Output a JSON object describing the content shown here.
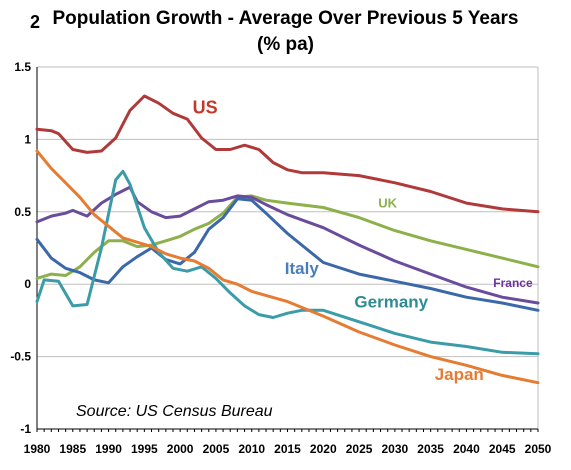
{
  "figure_number": "2",
  "chart_data": {
    "type": "line",
    "title": "Population  Growth  - Average Over Previous 5 Years",
    "subtitle": "(% pa)",
    "source": "Source: US Census Bureau",
    "xlim": [
      1980,
      2050
    ],
    "ylim": [
      -1,
      1.5
    ],
    "x_ticks": [
      1980,
      1985,
      1990,
      1995,
      2000,
      2005,
      2010,
      2015,
      2020,
      2025,
      2030,
      2035,
      2040,
      2045,
      2050
    ],
    "y_ticks": [
      -1,
      -0.5,
      0,
      0.5,
      1,
      1.5
    ],
    "y_tick_labels": [
      "-1",
      "-0.5",
      "0",
      "0.5",
      "1",
      "1.5"
    ],
    "grid": true,
    "series": [
      {
        "name": "US",
        "color": "#b03a3a",
        "label_color": "#c0392b",
        "points": [
          [
            1980,
            1.07
          ],
          [
            1982,
            1.06
          ],
          [
            1983,
            1.04
          ],
          [
            1985,
            0.93
          ],
          [
            1987,
            0.91
          ],
          [
            1989,
            0.92
          ],
          [
            1991,
            1.01
          ],
          [
            1993,
            1.2
          ],
          [
            1995,
            1.3
          ],
          [
            1997,
            1.25
          ],
          [
            1999,
            1.18
          ],
          [
            2001,
            1.14
          ],
          [
            2003,
            1.01
          ],
          [
            2005,
            0.93
          ],
          [
            2007,
            0.93
          ],
          [
            2009,
            0.96
          ],
          [
            2011,
            0.93
          ],
          [
            2013,
            0.84
          ],
          [
            2015,
            0.79
          ],
          [
            2017,
            0.77
          ],
          [
            2020,
            0.77
          ],
          [
            2025,
            0.75
          ],
          [
            2030,
            0.7
          ],
          [
            2035,
            0.64
          ],
          [
            2040,
            0.56
          ],
          [
            2045,
            0.52
          ],
          [
            2050,
            0.5
          ]
        ]
      },
      {
        "name": "UK",
        "color": "#8db04a",
        "label_color": "#8db04a",
        "points": [
          [
            1980,
            0.04
          ],
          [
            1982,
            0.07
          ],
          [
            1984,
            0.06
          ],
          [
            1986,
            0.12
          ],
          [
            1988,
            0.22
          ],
          [
            1990,
            0.3
          ],
          [
            1992,
            0.3
          ],
          [
            1994,
            0.26
          ],
          [
            1996,
            0.27
          ],
          [
            1998,
            0.3
          ],
          [
            2000,
            0.33
          ],
          [
            2002,
            0.38
          ],
          [
            2004,
            0.42
          ],
          [
            2006,
            0.49
          ],
          [
            2008,
            0.6
          ],
          [
            2010,
            0.61
          ],
          [
            2012,
            0.58
          ],
          [
            2015,
            0.56
          ],
          [
            2020,
            0.53
          ],
          [
            2025,
            0.46
          ],
          [
            2030,
            0.37
          ],
          [
            2035,
            0.3
          ],
          [
            2040,
            0.24
          ],
          [
            2045,
            0.18
          ],
          [
            2050,
            0.12
          ]
        ]
      },
      {
        "name": "France",
        "color": "#6a4c9c",
        "label_color": "#7030a0",
        "points": [
          [
            1980,
            0.43
          ],
          [
            1982,
            0.47
          ],
          [
            1984,
            0.49
          ],
          [
            1985,
            0.51
          ],
          [
            1987,
            0.47
          ],
          [
            1989,
            0.56
          ],
          [
            1991,
            0.62
          ],
          [
            1993,
            0.67
          ],
          [
            1994,
            0.57
          ],
          [
            1996,
            0.5
          ],
          [
            1998,
            0.46
          ],
          [
            2000,
            0.47
          ],
          [
            2002,
            0.52
          ],
          [
            2004,
            0.57
          ],
          [
            2006,
            0.58
          ],
          [
            2008,
            0.61
          ],
          [
            2010,
            0.6
          ],
          [
            2012,
            0.55
          ],
          [
            2015,
            0.48
          ],
          [
            2020,
            0.39
          ],
          [
            2025,
            0.27
          ],
          [
            2030,
            0.16
          ],
          [
            2035,
            0.07
          ],
          [
            2040,
            -0.02
          ],
          [
            2045,
            -0.09
          ],
          [
            2050,
            -0.13
          ]
        ]
      },
      {
        "name": "Italy",
        "color": "#3b68a8",
        "label_color": "#4a7ebb",
        "points": [
          [
            1980,
            0.31
          ],
          [
            1982,
            0.18
          ],
          [
            1984,
            0.11
          ],
          [
            1986,
            0.08
          ],
          [
            1988,
            0.03
          ],
          [
            1990,
            0.01
          ],
          [
            1992,
            0.12
          ],
          [
            1994,
            0.19
          ],
          [
            1996,
            0.25
          ],
          [
            1998,
            0.17
          ],
          [
            2000,
            0.14
          ],
          [
            2002,
            0.22
          ],
          [
            2004,
            0.38
          ],
          [
            2006,
            0.46
          ],
          [
            2008,
            0.59
          ],
          [
            2010,
            0.58
          ],
          [
            2012,
            0.49
          ],
          [
            2015,
            0.35
          ],
          [
            2020,
            0.15
          ],
          [
            2025,
            0.07
          ],
          [
            2030,
            0.02
          ],
          [
            2035,
            -0.03
          ],
          [
            2040,
            -0.09
          ],
          [
            2045,
            -0.13
          ],
          [
            2050,
            -0.18
          ]
        ]
      },
      {
        "name": "Germany",
        "color": "#3a9ca8",
        "label_color": "#2e8b96",
        "points": [
          [
            1980,
            -0.12
          ],
          [
            1981,
            0.03
          ],
          [
            1983,
            0.02
          ],
          [
            1985,
            -0.15
          ],
          [
            1987,
            -0.14
          ],
          [
            1989,
            0.25
          ],
          [
            1991,
            0.72
          ],
          [
            1992,
            0.78
          ],
          [
            1993,
            0.69
          ],
          [
            1995,
            0.39
          ],
          [
            1997,
            0.22
          ],
          [
            1999,
            0.11
          ],
          [
            2001,
            0.09
          ],
          [
            2003,
            0.12
          ],
          [
            2005,
            0.04
          ],
          [
            2007,
            -0.06
          ],
          [
            2009,
            -0.15
          ],
          [
            2011,
            -0.21
          ],
          [
            2013,
            -0.23
          ],
          [
            2015,
            -0.2
          ],
          [
            2017,
            -0.18
          ],
          [
            2020,
            -0.18
          ],
          [
            2025,
            -0.26
          ],
          [
            2030,
            -0.34
          ],
          [
            2035,
            -0.4
          ],
          [
            2040,
            -0.43
          ],
          [
            2045,
            -0.47
          ],
          [
            2050,
            -0.48
          ]
        ]
      },
      {
        "name": "Japan",
        "color": "#e57c32",
        "label_color": "#e57c32",
        "points": [
          [
            1980,
            0.92
          ],
          [
            1982,
            0.8
          ],
          [
            1984,
            0.7
          ],
          [
            1986,
            0.6
          ],
          [
            1988,
            0.48
          ],
          [
            1990,
            0.4
          ],
          [
            1992,
            0.32
          ],
          [
            1994,
            0.29
          ],
          [
            1996,
            0.26
          ],
          [
            1998,
            0.21
          ],
          [
            2000,
            0.18
          ],
          [
            2002,
            0.16
          ],
          [
            2004,
            0.11
          ],
          [
            2006,
            0.03
          ],
          [
            2008,
            0.0
          ],
          [
            2010,
            -0.05
          ],
          [
            2015,
            -0.12
          ],
          [
            2020,
            -0.22
          ],
          [
            2025,
            -0.33
          ],
          [
            2030,
            -0.42
          ],
          [
            2035,
            -0.5
          ],
          [
            2040,
            -0.56
          ],
          [
            2045,
            -0.63
          ],
          [
            2050,
            -0.68
          ]
        ]
      }
    ],
    "labels": [
      {
        "series": "US",
        "text": "US",
        "x": 2003.5,
        "y": 1.18,
        "size": 18
      },
      {
        "series": "UK",
        "text": "UK",
        "x": 2029,
        "y": 0.53,
        "size": 13
      },
      {
        "series": "Italy",
        "text": "Italy",
        "x": 2017,
        "y": 0.07,
        "size": 17
      },
      {
        "series": "France",
        "text": "France",
        "x": 2046.5,
        "y": -0.02,
        "size": 12
      },
      {
        "series": "Germany",
        "text": "Germany",
        "x": 2029.5,
        "y": -0.16,
        "size": 17
      },
      {
        "series": "Japan",
        "text": "Japan",
        "x": 2039,
        "y": -0.66,
        "size": 17
      }
    ]
  }
}
